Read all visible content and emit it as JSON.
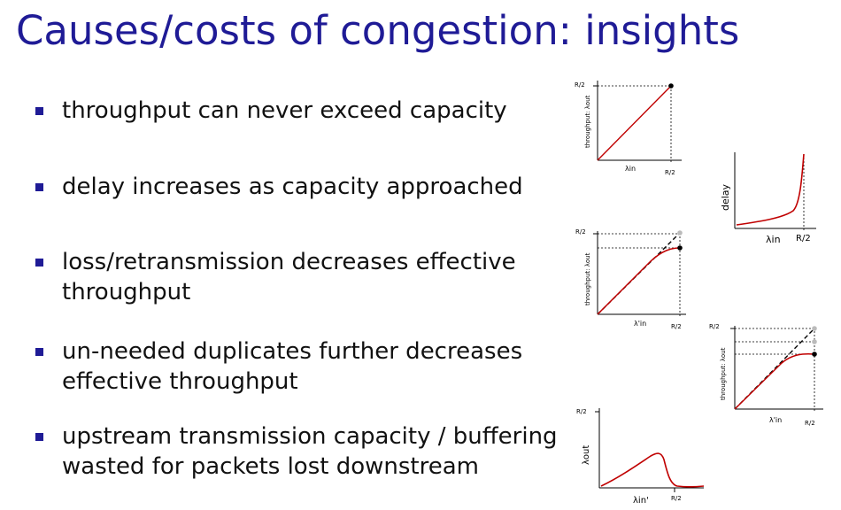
{
  "slide": {
    "title": "Causes/costs of congestion: insights",
    "bullets": [
      {
        "lines": [
          "throughput can never exceed capacity"
        ]
      },
      {
        "lines": [
          "delay increases as capacity approached"
        ]
      },
      {
        "lines": [
          "loss/retransmission decreases effective",
          "throughput"
        ]
      },
      {
        "lines": [
          "un-needed duplicates further decreases",
          "effective throughput"
        ]
      },
      {
        "lines": [
          "upstream transmission capacity / buffering",
          "wasted for packets lost downstream"
        ]
      }
    ]
  },
  "chart_data": [
    {
      "type": "line",
      "name": "throughput-vs-offered-load",
      "ylabel": "throughput: λout",
      "xlabel": "λin",
      "y_tick": "R/2",
      "x_tick": "R/2",
      "x": [
        0,
        0.5
      ],
      "y": [
        0,
        0.5
      ]
    },
    {
      "type": "line",
      "name": "delay-vs-offered-load",
      "ylabel": "delay",
      "xlabel": "λin",
      "x_tick": "R/2",
      "x": [
        0,
        0.1,
        0.2,
        0.3,
        0.4,
        0.45,
        0.48,
        0.5
      ],
      "y": [
        0.05,
        0.08,
        0.12,
        0.18,
        0.3,
        0.45,
        0.7,
        1.0
      ]
    },
    {
      "type": "line",
      "name": "throughput-with-retransmission",
      "ylabel": "throughput: λout",
      "xlabel": "λ'in",
      "y_tick": "R/2",
      "x_tick": "R/2",
      "series": [
        {
          "name": "ideal",
          "x": [
            0,
            0.5
          ],
          "y": [
            0,
            0.5
          ]
        },
        {
          "name": "actual",
          "x": [
            0,
            0.3,
            0.4,
            0.45,
            0.5
          ],
          "y": [
            0,
            0.3,
            0.38,
            0.41,
            0.42
          ]
        }
      ]
    },
    {
      "type": "line",
      "name": "throughput-with-duplicates",
      "ylabel": "throughput: λout",
      "xlabel": "λ'in",
      "y_tick": "R/2",
      "x_tick": "R/2",
      "series": [
        {
          "name": "ideal",
          "x": [
            0,
            0.5
          ],
          "y": [
            0,
            0.5
          ]
        },
        {
          "name": "actual",
          "x": [
            0,
            0.3,
            0.4,
            0.45,
            0.5
          ],
          "y": [
            0,
            0.28,
            0.34,
            0.36,
            0.36
          ]
        }
      ]
    },
    {
      "type": "line",
      "name": "throughput-upstream-waste",
      "ylabel": "λout",
      "xlabel": "λin'",
      "x_tick": "R/2",
      "y_tick": "R/2",
      "x": [
        0,
        0.1,
        0.2,
        0.3,
        0.35,
        0.38,
        0.4,
        0.45,
        0.5,
        0.6
      ],
      "y": [
        0,
        0.08,
        0.17,
        0.26,
        0.3,
        0.28,
        0.15,
        0.04,
        0.01,
        0.0
      ]
    }
  ]
}
